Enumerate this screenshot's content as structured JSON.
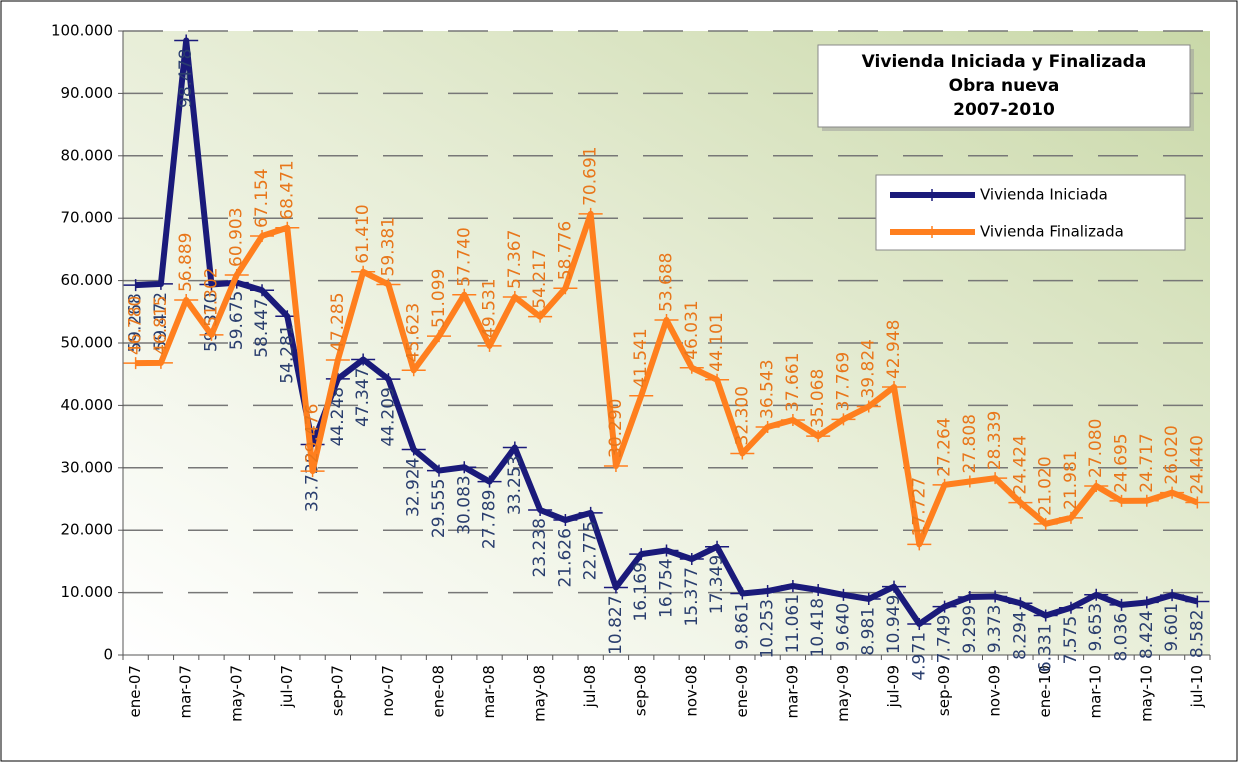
{
  "chart_data": {
    "type": "line",
    "title": "Vivienda Iniciada y Finalizada",
    "subtitle": [
      "Obra nueva",
      "2007-2010"
    ],
    "categories": [
      "ene-07",
      null,
      "mar-07",
      null,
      "may-07",
      null,
      "jul-07",
      null,
      "sep-07",
      null,
      "nov-07",
      null,
      "ene-08",
      null,
      "mar-08",
      null,
      "may-08",
      null,
      "jul-08",
      null,
      "sep-08",
      null,
      "nov-08",
      null,
      "ene-09",
      null,
      "mar-09",
      null,
      "may-09",
      null,
      "jul-09",
      null,
      "sep-09",
      null,
      "nov-09",
      null,
      "ene-10",
      null,
      "mar-10",
      null,
      "may-10",
      null,
      "jul-10"
    ],
    "series": [
      {
        "name": "Vivienda Iniciada",
        "color": "#1a1a7a",
        "values": [
          59268,
          59472,
          98478,
          59370,
          59675,
          58447,
          54281,
          33738,
          44248,
          47347,
          44209,
          32924,
          29555,
          30083,
          27789,
          33253,
          23238,
          21626,
          22775,
          10827,
          16169,
          16754,
          15377,
          17349,
          9861,
          10253,
          11061,
          10418,
          9640,
          8981,
          10949,
          4971,
          7749,
          9299,
          9373,
          8294,
          6331,
          7575,
          9653,
          8036,
          8424,
          9601,
          8582
        ],
        "value_labels": [
          "59.268",
          "59.472",
          "98.478",
          "59.370",
          "59.675",
          "58.447",
          "54.281",
          "33.738",
          "44.248",
          "47.347",
          "44.209",
          "32.924",
          "29.555",
          "30.083",
          "27.789",
          "33.253",
          "23.238",
          "21.626",
          "22.775",
          "10.827",
          "16.169",
          "16.754",
          "15.377",
          "17.349",
          "9.861",
          "10.253",
          "11.061",
          "10.418",
          "9.640",
          "8.981",
          "10.949",
          "4.971",
          "7.749",
          "9.299",
          "9.373",
          "8.294",
          "6.331",
          "7.575",
          "9.653",
          "8.036",
          "8.424",
          "9.601",
          "8.582"
        ]
      },
      {
        "name": "Vivienda Finalizada",
        "color": "#ff7f1e",
        "values": [
          46780,
          46815,
          56889,
          51302,
          60903,
          67154,
          68471,
          29476,
          47285,
          61410,
          59381,
          45623,
          51099,
          57740,
          49531,
          57367,
          54217,
          58776,
          70691,
          30290,
          41541,
          53688,
          46031,
          44101,
          32300,
          36543,
          37661,
          35068,
          37769,
          39824,
          42948,
          17727,
          27264,
          27808,
          28339,
          24424,
          21020,
          21981,
          27080,
          24695,
          24717,
          26020,
          24440
        ],
        "value_labels": [
          "46.780",
          "46.815",
          "56.889",
          "51.302",
          "60.903",
          "67.154",
          "68.471",
          "29.476",
          "47.285",
          "61.410",
          "59.381",
          "45.623",
          "51.099",
          "57.740",
          "49.531",
          "57.367",
          "54.217",
          "58.776",
          "70.691",
          "30.290",
          "41.541",
          "53.688",
          "46.031",
          "44.101",
          "32.300",
          "36.543",
          "37.661",
          "35.068",
          "37.769",
          "39.824",
          "42.948",
          "17.727",
          "27.264",
          "27.808",
          "28.339",
          "24.424",
          "21.020",
          "21.981",
          "27.080",
          "24.695",
          "24.717",
          "26.020",
          "24.440"
        ]
      }
    ],
    "ylim": [
      0,
      100000
    ],
    "yticks": [
      0,
      {
        "value": 10000,
        "label": "10.000"
      },
      {
        "value": 20000,
        "label": "20.000"
      },
      {
        "value": 30000,
        "label": "30.000"
      },
      {
        "value": 40000,
        "label": "40.000"
      },
      {
        "value": 50000,
        "label": "50.000"
      },
      {
        "value": 60000,
        "label": "60.000"
      },
      {
        "value": 70000,
        "label": "70.000"
      },
      {
        "value": 80000,
        "label": "80.000"
      },
      {
        "value": 90000,
        "label": "90.000"
      },
      {
        "value": 100000,
        "label": "100.000"
      }
    ],
    "grid": true,
    "legend": "upper right"
  }
}
